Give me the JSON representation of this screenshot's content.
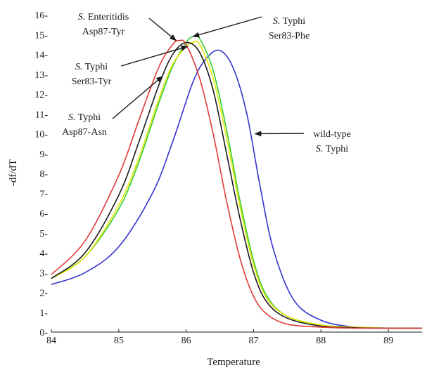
{
  "chart_data": {
    "type": "line",
    "xlabel": "Temperature",
    "ylabel": "-df/dT",
    "xlim": [
      84,
      89.5
    ],
    "ylim": [
      0,
      16
    ],
    "x_ticks": [
      "84",
      "85",
      "86",
      "87",
      "88",
      "89"
    ],
    "y_ticks": [
      "0-",
      "1-",
      "2-",
      "3-",
      "4-",
      "5-",
      "6-",
      "7-",
      "8-",
      "9-",
      "10-",
      "11-",
      "12-",
      "13-",
      "14-",
      "15-",
      "16-"
    ],
    "grid": false,
    "legend": "none",
    "series": [
      {
        "color": "#3333cc",
        "x": [
          84,
          84.5,
          85,
          85.5,
          85.8,
          86.1,
          86.3,
          86.5,
          86.7,
          86.9,
          87.1,
          87.3,
          87.6,
          88,
          88.5,
          89,
          89.5
        ],
        "y": [
          2.4,
          3.0,
          4.3,
          7.0,
          9.6,
          12.6,
          13.8,
          14.2,
          13.3,
          11.0,
          7.3,
          4.1,
          1.6,
          0.6,
          0.25,
          0.2,
          0.2
        ]
      },
      {
        "color": "#33cc33",
        "x": [
          84,
          84.5,
          85,
          85.3,
          85.6,
          85.8,
          86,
          86.1,
          86.2,
          86.4,
          86.6,
          86.8,
          87,
          87.2,
          87.5,
          88,
          88.5,
          89,
          89.5
        ],
        "y": [
          2.7,
          3.8,
          6.2,
          8.6,
          11.6,
          13.4,
          14.6,
          14.9,
          14.8,
          13.2,
          10.2,
          6.6,
          3.6,
          1.8,
          0.8,
          0.35,
          0.25,
          0.2,
          0.2
        ]
      },
      {
        "color": "#e6e600",
        "x": [
          84,
          84.5,
          85,
          85.3,
          85.6,
          85.8,
          86,
          86.1,
          86.2,
          86.4,
          86.6,
          86.8,
          87,
          87.2,
          87.5,
          88,
          88.5,
          89,
          89.5
        ],
        "y": [
          2.7,
          3.8,
          6.4,
          8.8,
          11.8,
          13.5,
          14.4,
          14.6,
          14.5,
          12.8,
          9.8,
          6.3,
          3.4,
          1.7,
          0.8,
          0.35,
          0.25,
          0.2,
          0.2
        ]
      },
      {
        "color": "#1a1a1a",
        "x": [
          84,
          84.5,
          85,
          85.3,
          85.6,
          85.8,
          86,
          86.2,
          86.4,
          86.6,
          86.8,
          87,
          87.2,
          87.5,
          88,
          88.5,
          89,
          89.5
        ],
        "y": [
          2.7,
          4.0,
          6.9,
          9.6,
          12.5,
          14.0,
          14.6,
          14.1,
          12.2,
          9.0,
          5.7,
          3.0,
          1.5,
          0.7,
          0.3,
          0.22,
          0.2,
          0.2
        ]
      },
      {
        "color": "#e03a3a",
        "x": [
          84,
          84.5,
          85,
          85.3,
          85.6,
          85.8,
          85.9,
          86,
          86.2,
          86.4,
          86.6,
          86.8,
          87,
          87.2,
          87.5,
          88,
          88.5,
          89,
          89.5
        ],
        "y": [
          2.9,
          4.6,
          7.9,
          10.7,
          13.4,
          14.5,
          14.7,
          14.5,
          12.8,
          10.0,
          6.6,
          3.7,
          1.8,
          0.9,
          0.4,
          0.25,
          0.2,
          0.2,
          0.2
        ]
      }
    ],
    "annotations": [
      {
        "species": "S.",
        "strain": "Enteritidis",
        "mutation": "Asp87-Tyr",
        "target": [
          85.85,
          14.7
        ]
      },
      {
        "species": "S.",
        "strain": "Typhi",
        "mutation": "Ser83-Phe",
        "target": [
          86.1,
          14.9
        ]
      },
      {
        "species": "S.",
        "strain": "Typhi",
        "mutation": "Ser83-Tyr",
        "target": [
          86.02,
          14.4
        ]
      },
      {
        "species": "S.",
        "strain": "Typhi",
        "mutation": "Asp87-Asn",
        "target": [
          85.65,
          12.9
        ]
      },
      {
        "label": "wild-type",
        "species": "S.",
        "strain": "Typhi",
        "target": [
          87.02,
          10.0
        ]
      }
    ]
  }
}
